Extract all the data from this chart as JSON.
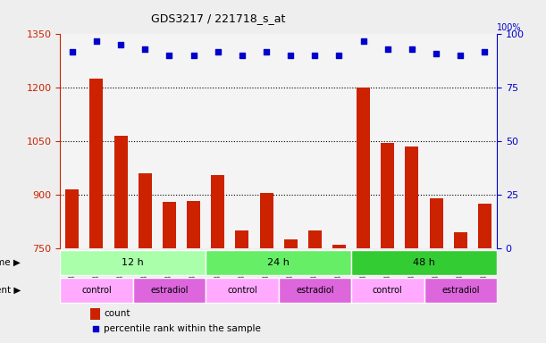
{
  "title": "GDS3217 / 221718_s_at",
  "samples": [
    "GSM286756",
    "GSM286757",
    "GSM286758",
    "GSM286759",
    "GSM286760",
    "GSM286761",
    "GSM286762",
    "GSM286763",
    "GSM286764",
    "GSM286765",
    "GSM286766",
    "GSM286767",
    "GSM286768",
    "GSM286769",
    "GSM286770",
    "GSM286771",
    "GSM286772",
    "GSM286773"
  ],
  "counts": [
    915,
    1225,
    1065,
    960,
    880,
    882,
    955,
    800,
    905,
    775,
    800,
    760,
    1200,
    1045,
    1035,
    890,
    795,
    875
  ],
  "percentile_ranks": [
    92,
    97,
    95,
    93,
    90,
    90,
    92,
    90,
    92,
    90,
    90,
    90,
    97,
    93,
    93,
    91,
    90,
    92
  ],
  "bar_color": "#cc2200",
  "dot_color": "#0000cc",
  "ylim_left": [
    750,
    1350
  ],
  "ylim_right": [
    0,
    100
  ],
  "yticks_left": [
    750,
    900,
    1050,
    1200,
    1350
  ],
  "yticks_right": [
    0,
    25,
    50,
    75,
    100
  ],
  "ylabel_left_color": "#cc2200",
  "ylabel_right_color": "#0000cc",
  "grid_color": "#000000",
  "grid_yticks": [
    900,
    1050,
    1200
  ],
  "time_groups": [
    {
      "label": "12 h",
      "start": 0,
      "end": 6,
      "color": "#aaffaa"
    },
    {
      "label": "24 h",
      "start": 6,
      "end": 12,
      "color": "#66ee66"
    },
    {
      "label": "48 h",
      "start": 12,
      "end": 18,
      "color": "#33cc33"
    }
  ],
  "agent_groups": [
    {
      "label": "control",
      "start": 0,
      "end": 3,
      "color": "#ffaaff"
    },
    {
      "label": "estradiol",
      "start": 3,
      "end": 6,
      "color": "#dd66dd"
    },
    {
      "label": "control",
      "start": 6,
      "end": 9,
      "color": "#ffaaff"
    },
    {
      "label": "estradiol",
      "start": 9,
      "end": 12,
      "color": "#dd66dd"
    },
    {
      "label": "control",
      "start": 12,
      "end": 15,
      "color": "#ffaaff"
    },
    {
      "label": "estradiol",
      "start": 15,
      "end": 18,
      "color": "#dd66dd"
    }
  ],
  "legend_count_label": "count",
  "legend_pct_label": "percentile rank within the sample",
  "time_label": "time",
  "agent_label": "agent",
  "bg_color": "#eeeeee",
  "plot_bg_color": "#ffffff",
  "bar_width": 0.55
}
